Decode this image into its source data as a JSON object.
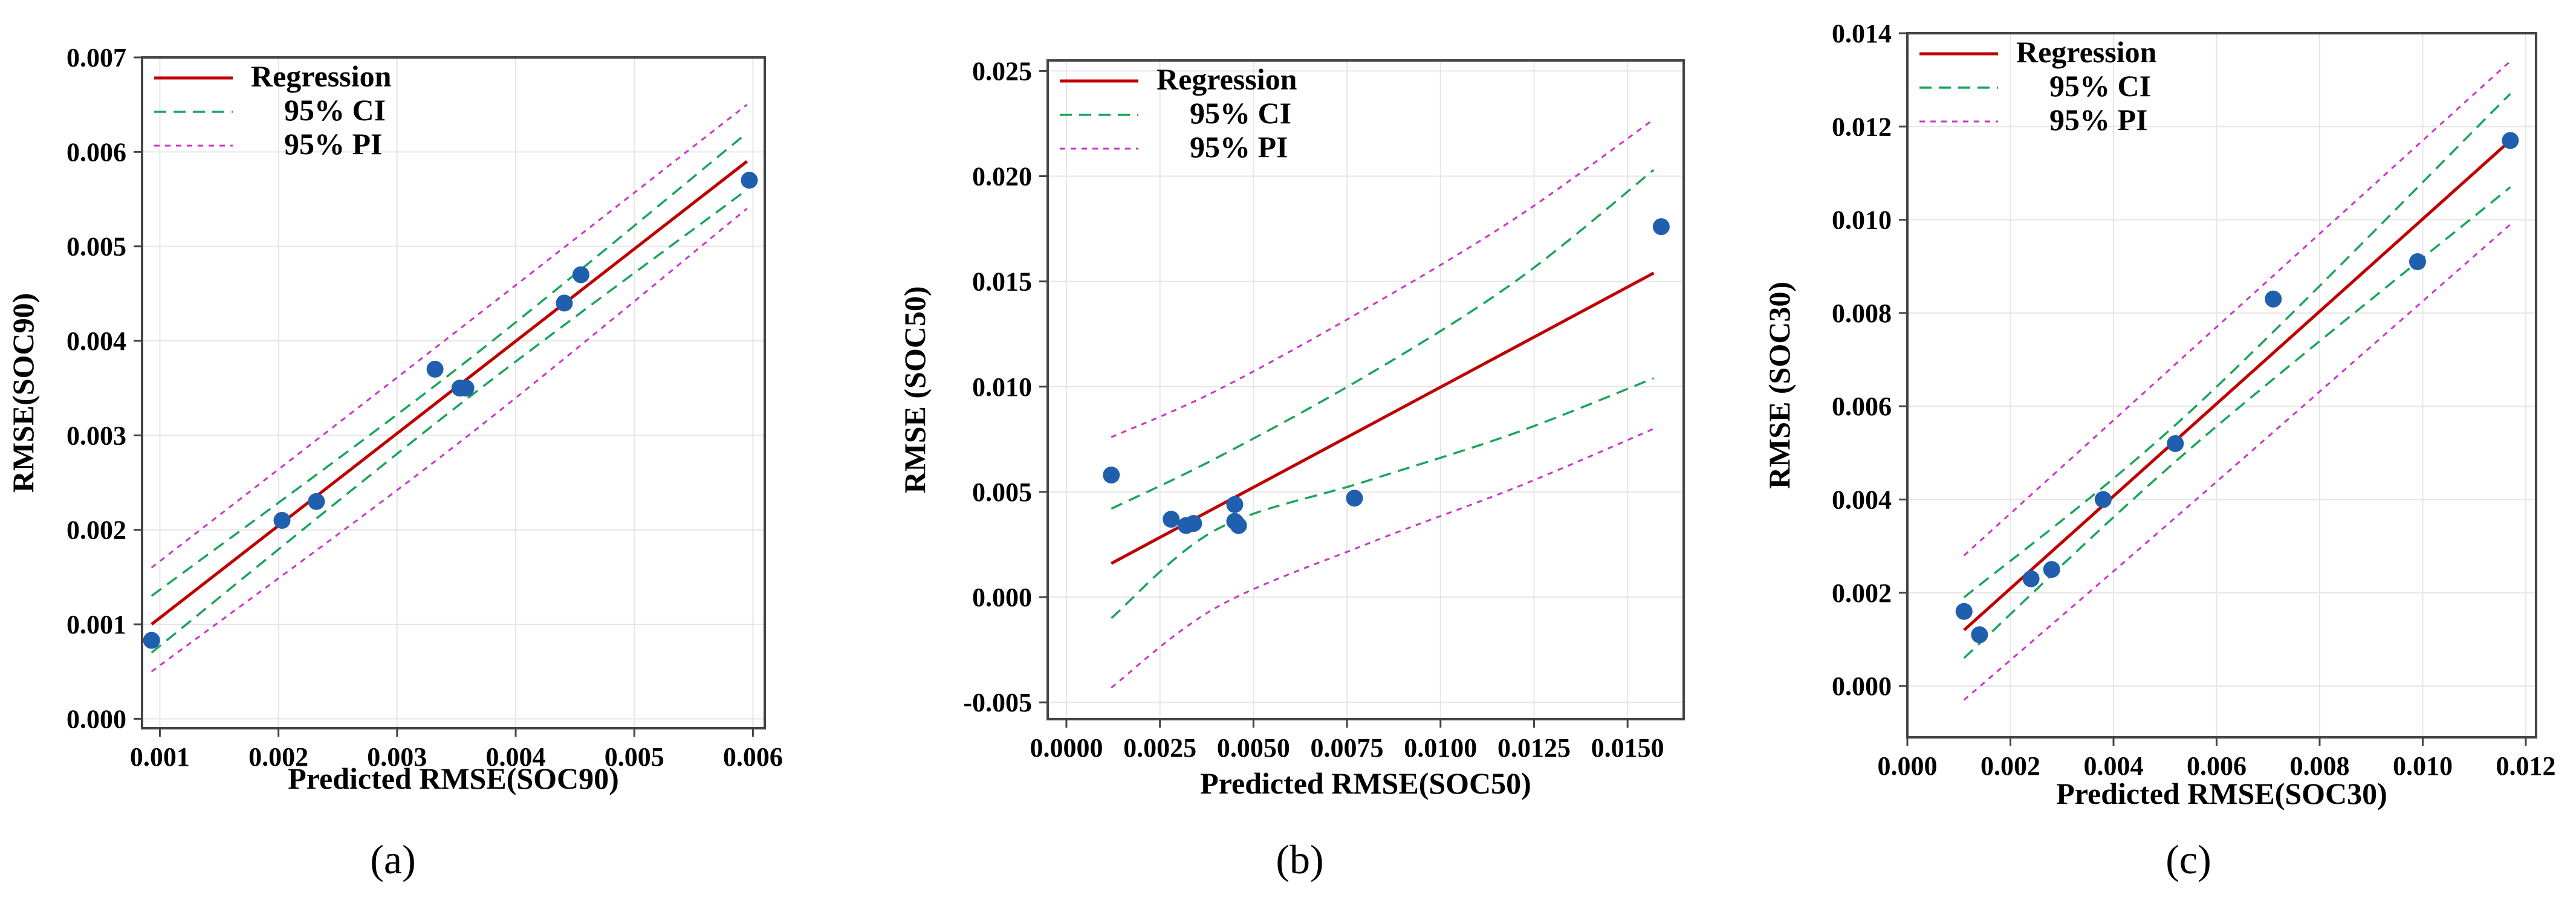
{
  "colors": {
    "regression": "#c00000",
    "ci": "#1aa55a",
    "pi": "#cc33cc",
    "points": "#1f5fae"
  },
  "chart_data": [
    {
      "type": "scatter",
      "caption": "(a)",
      "xlabel": "Predicted RMSE(SOC90)",
      "ylabel": "RMSE(SOC90)",
      "xlim": [
        0.00085,
        0.0061
      ],
      "ylim": [
        -0.0001,
        0.007
      ],
      "xticks": [
        0.001,
        0.002,
        0.003,
        0.004,
        0.005,
        0.006
      ],
      "xtick_labels": [
        "0.001",
        "0.002",
        "0.003",
        "0.004",
        "0.005",
        "0.006"
      ],
      "yticks": [
        0.0,
        0.001,
        0.002,
        0.003,
        0.004,
        0.005,
        0.006,
        0.007
      ],
      "ytick_labels": [
        "0.000",
        "0.001",
        "0.002",
        "0.003",
        "0.004",
        "0.005",
        "0.006",
        "0.007"
      ],
      "legend": [
        "Regression",
        "95% CI",
        "95% PI"
      ],
      "legend_position": "top-left",
      "points": [
        [
          0.00093,
          0.00083
        ],
        [
          0.00203,
          0.0021
        ],
        [
          0.00232,
          0.0023
        ],
        [
          0.00332,
          0.0037
        ],
        [
          0.00353,
          0.0035
        ],
        [
          0.00358,
          0.0035
        ],
        [
          0.00441,
          0.0044
        ],
        [
          0.00455,
          0.0047
        ],
        [
          0.00597,
          0.0057
        ]
      ],
      "regression": [
        [
          0.00093,
          0.001
        ],
        [
          0.00595,
          0.0059
        ]
      ],
      "ci_upper": [
        [
          0.00093,
          0.0013
        ],
        [
          0.0035,
          0.0037
        ],
        [
          0.00595,
          0.0062
        ]
      ],
      "ci_lower": [
        [
          0.00093,
          0.0007
        ],
        [
          0.0035,
          0.0033
        ],
        [
          0.00595,
          0.0056
        ]
      ],
      "pi_upper": [
        [
          0.00093,
          0.0016
        ],
        [
          0.0035,
          0.0041
        ],
        [
          0.00595,
          0.0065
        ]
      ],
      "pi_lower": [
        [
          0.00093,
          0.0005
        ],
        [
          0.0035,
          0.0029
        ],
        [
          0.00595,
          0.0054
        ]
      ]
    },
    {
      "type": "scatter",
      "caption": "(b)",
      "xlabel": "Predicted RMSE(SOC50)",
      "ylabel": "RMSE (SOC50)",
      "xlim": [
        -0.0005,
        0.0165
      ],
      "ylim": [
        -0.0058,
        0.0255
      ],
      "xticks": [
        0.0,
        0.0025,
        0.005,
        0.0075,
        0.01,
        0.0125,
        0.015
      ],
      "xtick_labels": [
        "0.0000",
        "0.0025",
        "0.0050",
        "0.0075",
        "0.0100",
        "0.0125",
        "0.0150"
      ],
      "yticks": [
        -0.005,
        0.0,
        0.005,
        0.01,
        0.015,
        0.02,
        0.025
      ],
      "ytick_labels": [
        "-0.005",
        "0.000",
        "0.005",
        "0.010",
        "0.015",
        "0.020",
        "0.025"
      ],
      "legend": [
        "Regression",
        "95% CI",
        "95% PI"
      ],
      "legend_position": "top-left",
      "points": [
        [
          0.0012,
          0.0058
        ],
        [
          0.0028,
          0.0037
        ],
        [
          0.0032,
          0.0034
        ],
        [
          0.0034,
          0.0035
        ],
        [
          0.0045,
          0.0044
        ],
        [
          0.0045,
          0.0036
        ],
        [
          0.0046,
          0.0034
        ],
        [
          0.0077,
          0.0047
        ],
        [
          0.0159,
          0.0176
        ]
      ],
      "regression": [
        [
          0.0012,
          0.0016
        ],
        [
          0.0157,
          0.0154
        ]
      ],
      "ci_upper": [
        [
          0.0012,
          0.0042
        ],
        [
          0.004,
          0.0066
        ],
        [
          0.008,
          0.0105
        ],
        [
          0.012,
          0.015
        ],
        [
          0.0157,
          0.0203
        ]
      ],
      "ci_lower": [
        [
          0.0012,
          -0.001
        ],
        [
          0.004,
          0.0032
        ],
        [
          0.008,
          0.0055
        ],
        [
          0.012,
          0.0078
        ],
        [
          0.0157,
          0.0104
        ]
      ],
      "pi_upper": [
        [
          0.0012,
          0.0076
        ],
        [
          0.004,
          0.0098
        ],
        [
          0.008,
          0.0137
        ],
        [
          0.012,
          0.018
        ],
        [
          0.0157,
          0.0227
        ]
      ],
      "pi_lower": [
        [
          0.0012,
          -0.0043
        ],
        [
          0.004,
          -0.0005
        ],
        [
          0.008,
          0.0025
        ],
        [
          0.012,
          0.0052
        ],
        [
          0.0157,
          0.008
        ]
      ]
    },
    {
      "type": "scatter",
      "caption": "(c)",
      "xlabel": "Predicted RMSE(SOC30)",
      "ylabel": "RMSE (SOC30)",
      "xlim": [
        0.0,
        0.0122
      ],
      "ylim": [
        -0.0011,
        0.014
      ],
      "xticks": [
        0.0,
        0.002,
        0.004,
        0.006,
        0.008,
        0.01,
        0.012
      ],
      "xtick_labels": [
        "0.000",
        "0.002",
        "0.004",
        "0.006",
        "0.008",
        "0.010",
        "0.012"
      ],
      "yticks": [
        0.0,
        0.002,
        0.004,
        0.006,
        0.008,
        0.01,
        0.012,
        0.014
      ],
      "ytick_labels": [
        "0.000",
        "0.002",
        "0.004",
        "0.006",
        "0.008",
        "0.010",
        "0.012",
        "0.014"
      ],
      "legend": [
        "Regression",
        "95% CI",
        "95% PI"
      ],
      "legend_position": "top-left",
      "points": [
        [
          0.0011,
          0.0016
        ],
        [
          0.0014,
          0.0011
        ],
        [
          0.0024,
          0.0023
        ],
        [
          0.0028,
          0.0025
        ],
        [
          0.0038,
          0.004
        ],
        [
          0.0052,
          0.0052
        ],
        [
          0.0071,
          0.0083
        ],
        [
          0.0099,
          0.0091
        ],
        [
          0.0117,
          0.0117
        ]
      ],
      "regression": [
        [
          0.0011,
          0.0012
        ],
        [
          0.0117,
          0.0117
        ]
      ],
      "ci_upper": [
        [
          0.0011,
          0.0019
        ],
        [
          0.0055,
          0.0059
        ],
        [
          0.0117,
          0.0127
        ]
      ],
      "ci_lower": [
        [
          0.0011,
          0.0006
        ],
        [
          0.0055,
          0.0051
        ],
        [
          0.0117,
          0.0107
        ]
      ],
      "pi_upper": [
        [
          0.0011,
          0.0028
        ],
        [
          0.0055,
          0.0072
        ],
        [
          0.0117,
          0.0134
        ]
      ],
      "pi_lower": [
        [
          0.0011,
          -0.0003
        ],
        [
          0.0055,
          0.0039
        ],
        [
          0.0117,
          0.0099
        ]
      ]
    }
  ]
}
